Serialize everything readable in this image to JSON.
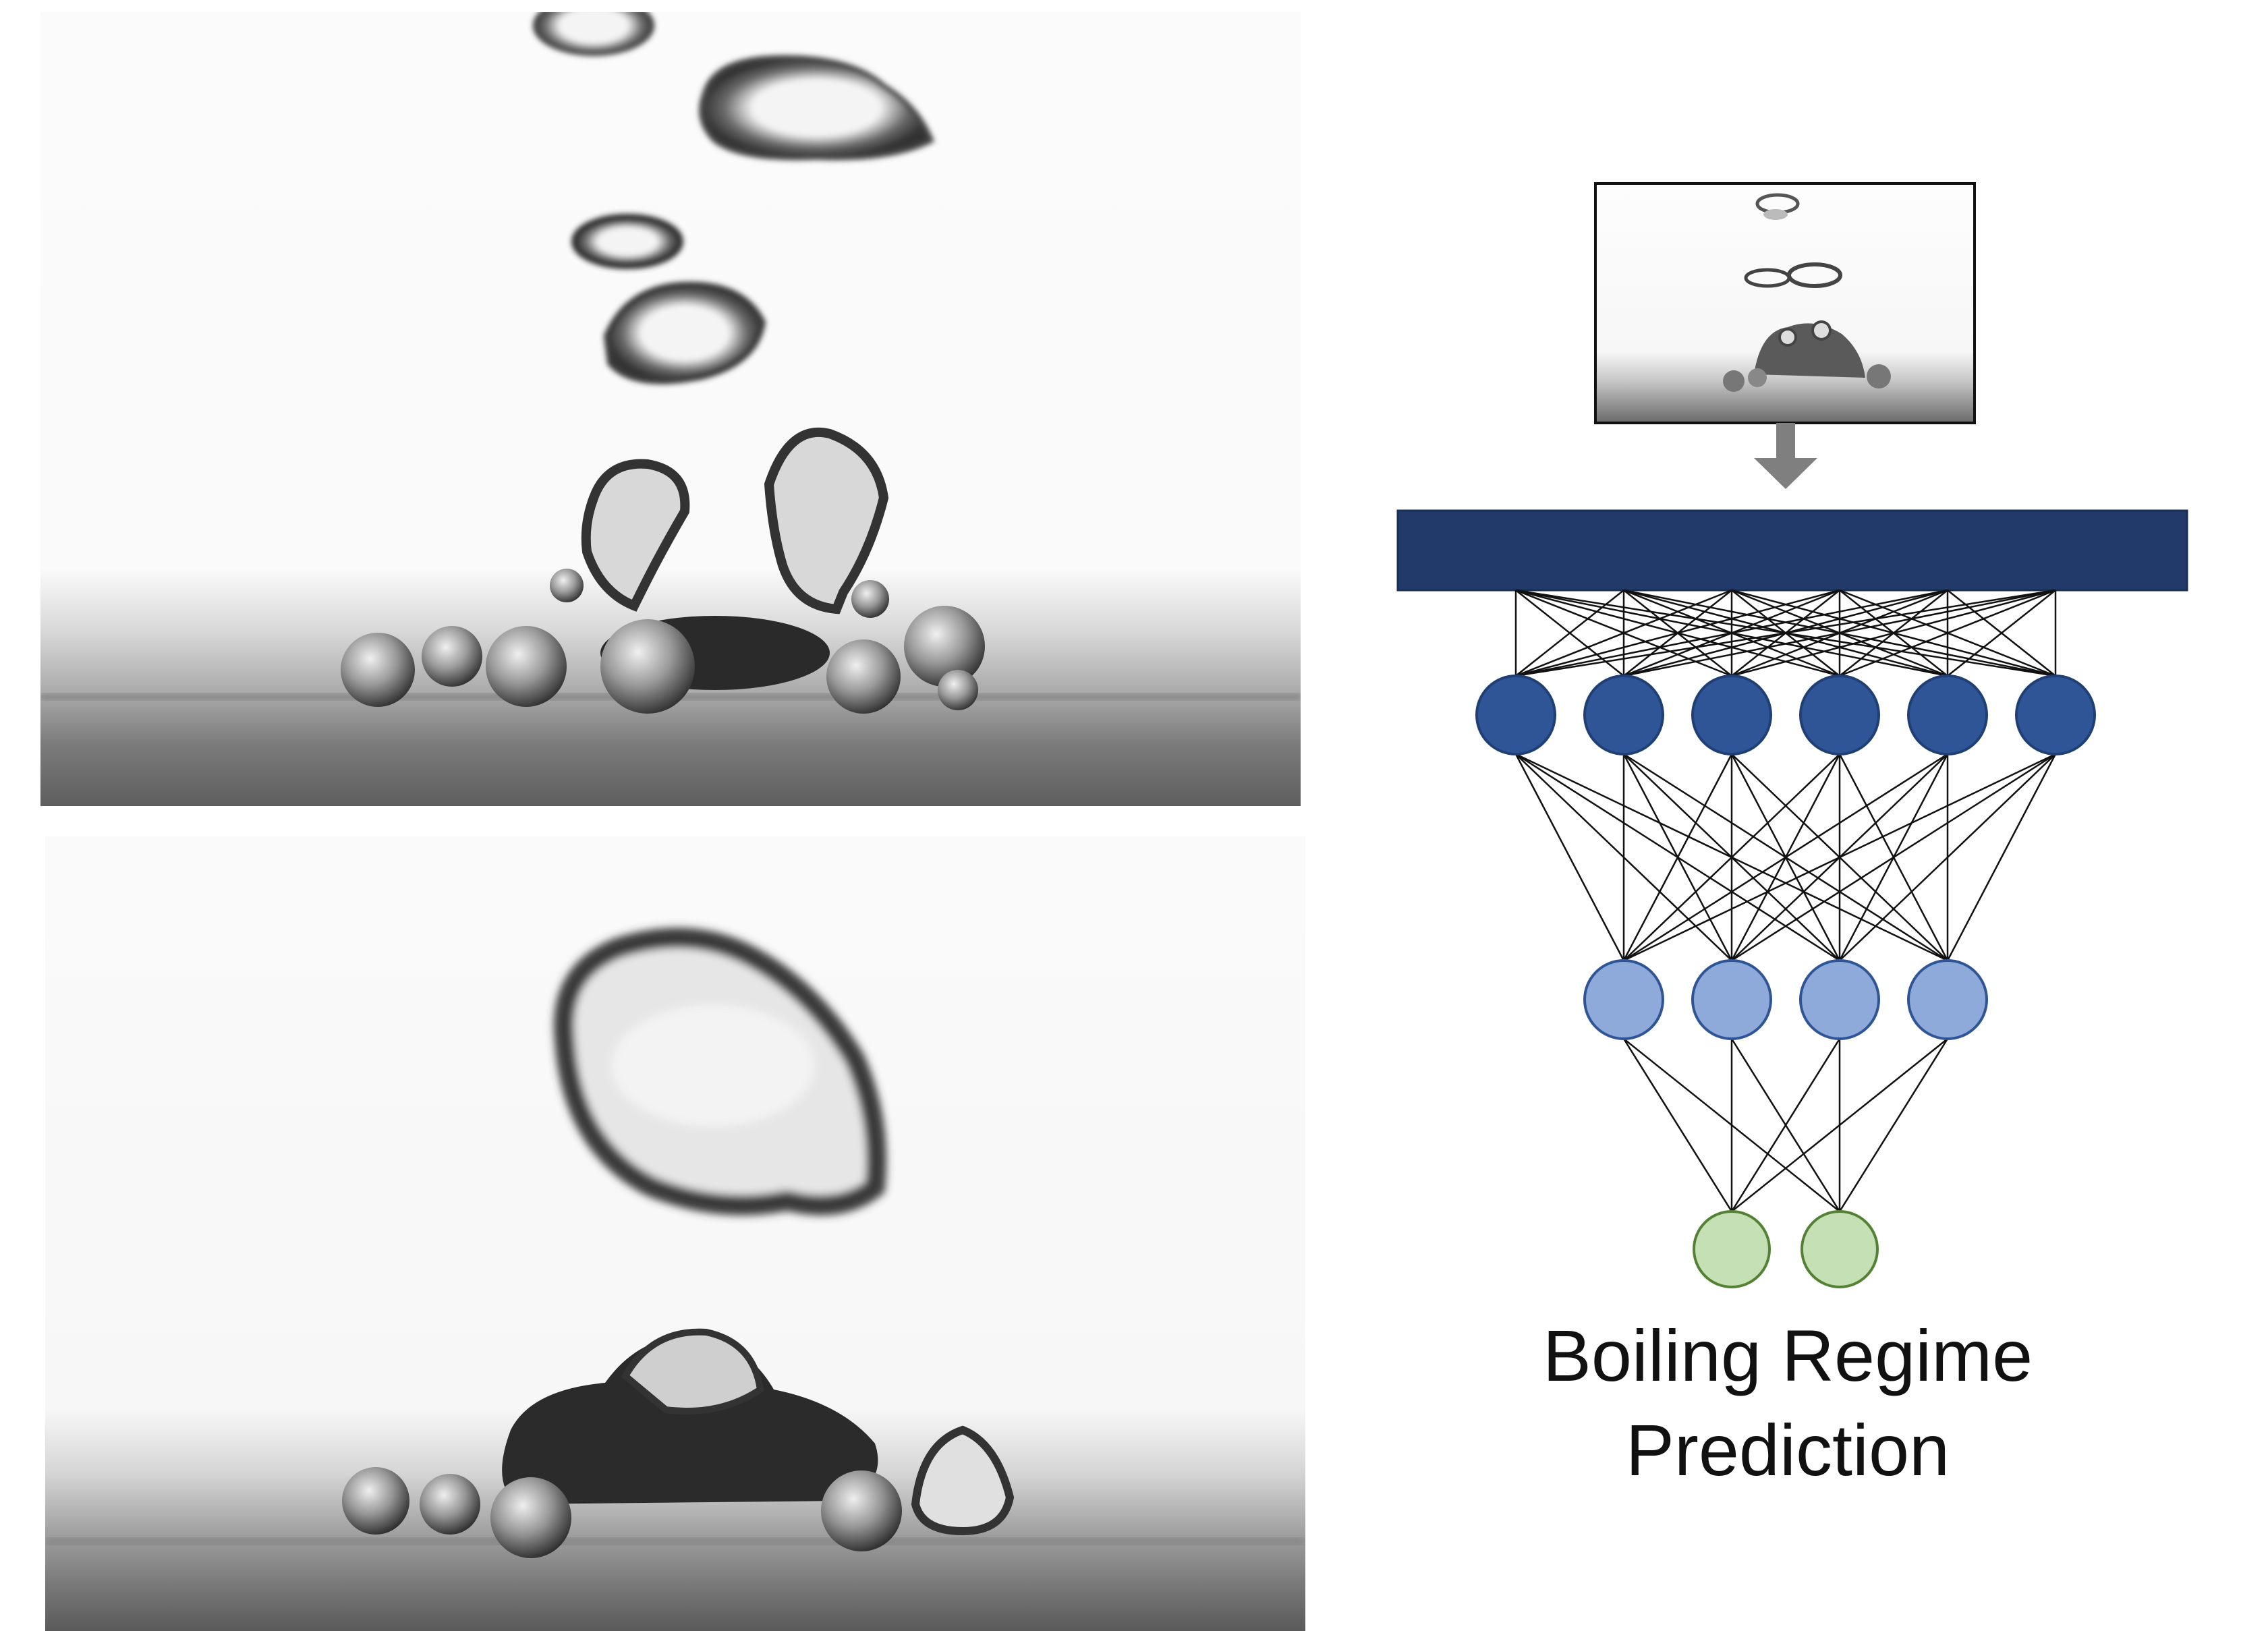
{
  "caption": {
    "line1": "Boiling Regime",
    "line2": "Prediction"
  },
  "network": {
    "dense_layer_color": "#213a69",
    "layers": [
      {
        "name": "hidden-layer-1",
        "nodes": 6,
        "fill": "#2f5597",
        "stroke": "#203f75"
      },
      {
        "name": "hidden-layer-2",
        "nodes": 4,
        "fill": "#8eaadb",
        "stroke": "#2f5597"
      },
      {
        "name": "output-layer",
        "nodes": 2,
        "fill": "#c5e0b4",
        "stroke": "#548235"
      }
    ],
    "arrow_color": "#7f7f7f"
  },
  "photos": {
    "top": "nucleate-boiling-bubbles-photo",
    "bottom": "transition-boiling-vapor-mass-photo"
  }
}
